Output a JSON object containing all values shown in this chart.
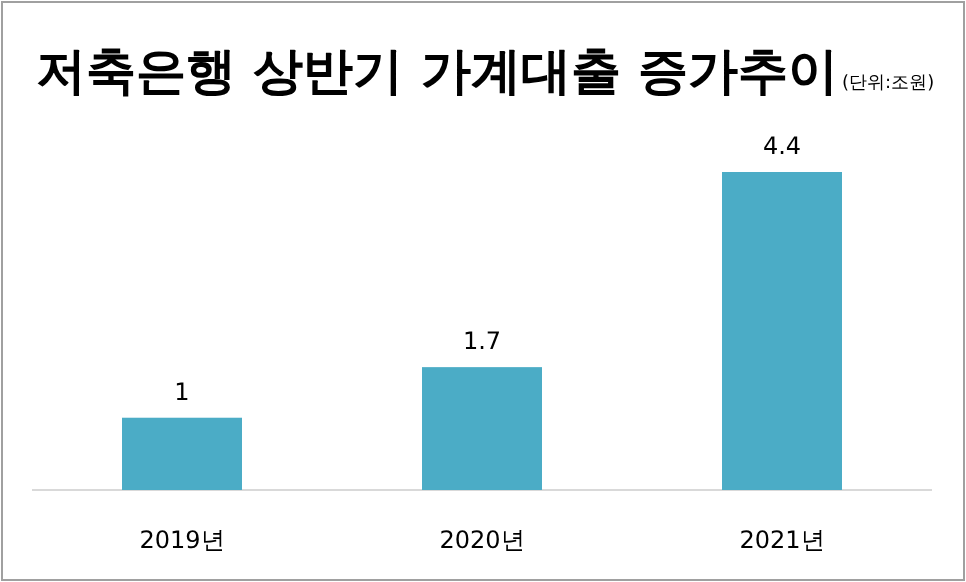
{
  "chart_data": {
    "type": "bar",
    "title": "저축은행 상반기 가계대출 증가추이",
    "subtitle": "(단위:조원)",
    "categories": [
      "2019년",
      "2020년",
      "2021년"
    ],
    "values": [
      1,
      1.7,
      4.4
    ],
    "color": "#4bacc6",
    "data_labels": true
  }
}
